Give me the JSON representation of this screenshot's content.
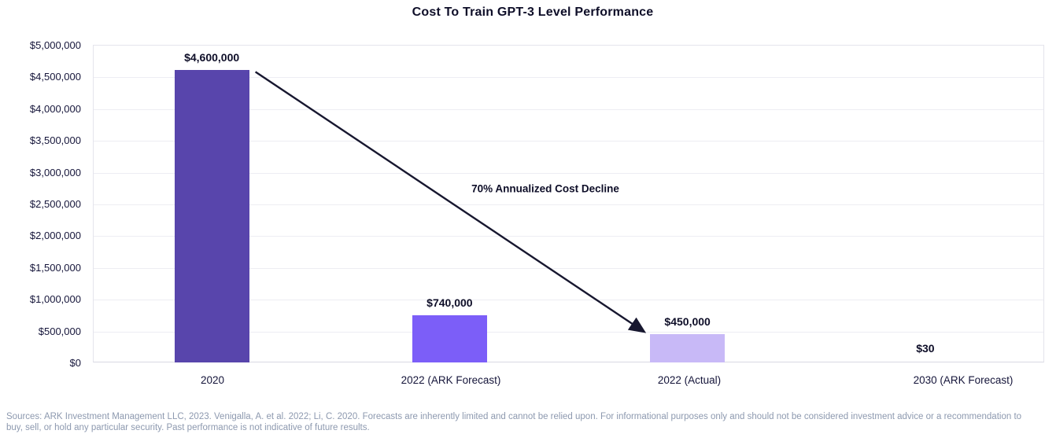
{
  "chart_data": {
    "type": "bar",
    "title": "Cost To Train GPT-3 Level Performance",
    "categories": [
      "2020",
      "2022 (ARK Forecast)",
      "2022 (Actual)",
      "2030 (ARK Forecast)"
    ],
    "values": [
      4600000,
      740000,
      450000,
      30
    ],
    "value_labels": [
      "$4,600,000",
      "$740,000",
      "$450,000",
      "$30"
    ],
    "bar_colors": [
      "#5845ac",
      "#7c5ef8",
      "#c8b9f7",
      "#c8b9f7"
    ],
    "xlabel": "",
    "ylabel": "",
    "ylim": [
      0,
      5000000
    ],
    "y_ticks": [
      0,
      500000,
      1000000,
      1500000,
      2000000,
      2500000,
      3000000,
      3500000,
      4000000,
      4500000,
      5000000
    ],
    "y_tick_labels": [
      "$0",
      "$500,000",
      "$1,000,000",
      "$1,500,000",
      "$2,000,000",
      "$2,500,000",
      "$3,000,000",
      "$3,500,000",
      "$4,000,000",
      "$4,500,000",
      "$5,000,000"
    ],
    "grid": true,
    "legend": false,
    "annotation": {
      "text": "70% Annualized Cost Decline",
      "arrow_from_category": "2020",
      "arrow_to_category": "2022 (Actual)"
    }
  },
  "source_text": "Sources: ARK Investment Management LLC, 2023. Venigalla, A. et al. 2022; Li, C. 2020. Forecasts are inherently limited and cannot be relied upon. For informational purposes only and should not be considered investment advice or a recommendation to buy, sell, or hold any particular security. Past performance is not indicative of future results.",
  "colors": {
    "bar_2020": "#5845ac",
    "bar_2022_forecast": "#7c5ef8",
    "bar_2022_actual": "#c8b9f7",
    "text_dark": "#0e0e28",
    "gridline": "#ededf3",
    "arrow": "#17172f",
    "source_text": "#8d99af"
  }
}
